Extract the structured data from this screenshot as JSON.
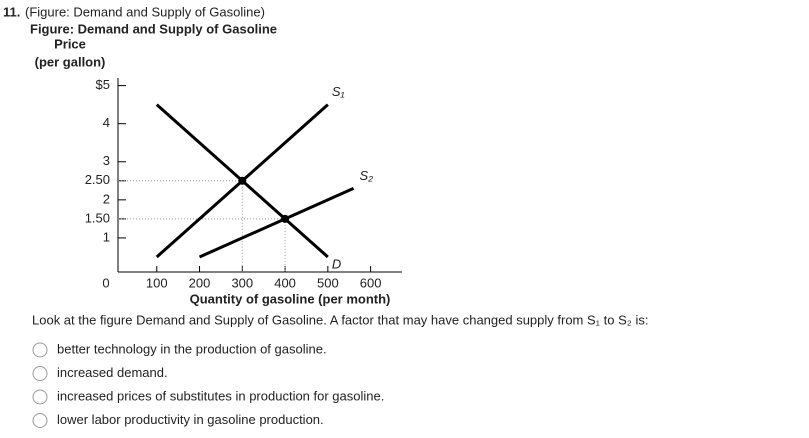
{
  "question": {
    "number": "11.",
    "heading": "(Figure: Demand and Supply of Gasoline)",
    "text": "Look at the figure Demand and Supply of Gasoline. A factor that may have changed supply from S₁ to S₂ is:",
    "options": [
      "better technology in the production of gasoline.",
      "increased demand.",
      "increased prices of substitutes in production for gasoline.",
      "lower labor productivity in gasoline production."
    ]
  },
  "chart_data": {
    "type": "line",
    "title": "Figure: Demand and Supply of Gasoline",
    "ylabel": "Price",
    "ylabel_unit": "(per gallon)",
    "xlabel": "Quantity of gasoline (per month)",
    "xlim": [
      0,
      650
    ],
    "ylim": [
      0,
      5.2
    ],
    "xticks": [
      0,
      100,
      200,
      300,
      400,
      500,
      600
    ],
    "yticks": [
      1,
      {
        "value": 1.5,
        "label": "1.50"
      },
      2,
      {
        "value": 2.5,
        "label": "2.50"
      },
      3,
      4,
      {
        "value": 5,
        "label": "$5"
      }
    ],
    "series": [
      {
        "name": "D",
        "color": "#000000",
        "x": [
          100,
          500
        ],
        "values": [
          4.5,
          0.5
        ]
      },
      {
        "name": "S₁",
        "color": "#000000",
        "x": [
          100,
          500
        ],
        "values": [
          0.5,
          4.5
        ]
      },
      {
        "name": "S₂",
        "color": "#000000",
        "x": [
          200,
          560
        ],
        "values": [
          0.5,
          2.3
        ]
      }
    ],
    "equilibria": [
      {
        "x": 300,
        "y": 2.5
      },
      {
        "x": 400,
        "y": 1.5
      }
    ]
  }
}
